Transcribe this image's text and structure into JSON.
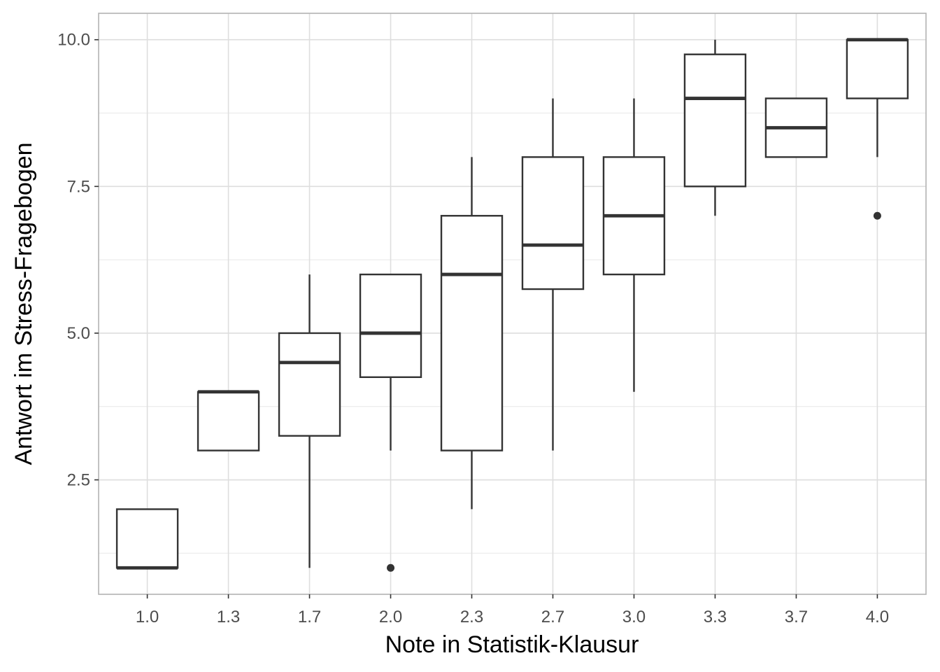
{
  "chart_data": {
    "type": "box",
    "xlabel": "Note in Statistik-Klausur",
    "ylabel": "Antwort im Stress-Fragebogen",
    "ylim": [
      0.55,
      10.45
    ],
    "yticks": [
      2.5,
      5.0,
      7.5,
      10.0
    ],
    "ytick_labels": [
      "2.5",
      "5.0",
      "7.5",
      "10.0"
    ],
    "grid": true,
    "categories": [
      "1.0",
      "1.3",
      "1.7",
      "2.0",
      "2.3",
      "2.7",
      "3.0",
      "3.3",
      "3.7",
      "4.0"
    ],
    "boxes": [
      {
        "category": "1.0",
        "lower_whisker": 1,
        "q1": 1,
        "median": 1,
        "q3": 2,
        "upper_whisker": 2,
        "outliers": []
      },
      {
        "category": "1.3",
        "lower_whisker": 3,
        "q1": 3,
        "median": 4,
        "q3": 4,
        "upper_whisker": 4,
        "outliers": []
      },
      {
        "category": "1.7",
        "lower_whisker": 1,
        "q1": 3.25,
        "median": 4.5,
        "q3": 5,
        "upper_whisker": 6,
        "outliers": []
      },
      {
        "category": "2.0",
        "lower_whisker": 3,
        "q1": 4.25,
        "median": 5,
        "q3": 6,
        "upper_whisker": 6,
        "outliers": [
          1
        ]
      },
      {
        "category": "2.3",
        "lower_whisker": 2,
        "q1": 3,
        "median": 6,
        "q3": 7,
        "upper_whisker": 8,
        "outliers": []
      },
      {
        "category": "2.7",
        "lower_whisker": 3,
        "q1": 5.75,
        "median": 6.5,
        "q3": 8,
        "upper_whisker": 9,
        "outliers": []
      },
      {
        "category": "3.0",
        "lower_whisker": 4,
        "q1": 6,
        "median": 7,
        "q3": 8,
        "upper_whisker": 9,
        "outliers": []
      },
      {
        "category": "3.3",
        "lower_whisker": 7,
        "q1": 7.5,
        "median": 9,
        "q3": 9.75,
        "upper_whisker": 10,
        "outliers": []
      },
      {
        "category": "3.7",
        "lower_whisker": 8,
        "q1": 8,
        "median": 8.5,
        "q3": 9,
        "upper_whisker": 9,
        "outliers": []
      },
      {
        "category": "4.0",
        "lower_whisker": 8,
        "q1": 9,
        "median": 10,
        "q3": 10,
        "upper_whisker": 10,
        "outliers": [
          7
        ]
      }
    ],
    "colors": {
      "box_stroke": "#333333",
      "grid_major": "#dedede",
      "grid_minor": "#ececec",
      "panel_border": "#b3b3b3",
      "tick_text": "#4d4d4d",
      "title_text": "#000000"
    }
  }
}
